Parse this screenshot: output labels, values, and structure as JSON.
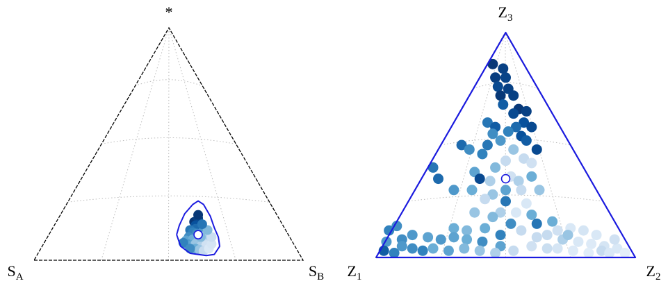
{
  "chart_data": [
    {
      "type": "scatter",
      "coordinate_system": "ternary",
      "vertices": {
        "top": "*",
        "left": "S",
        "left_sub": "A",
        "right": "S",
        "right_sub": "B"
      },
      "grid": true,
      "point_color_scale": "blues",
      "region_color": "#1a1adf",
      "mean_marker": [
        0.61,
        0.11
      ],
      "region_contour": [
        [
          0.53,
          0.11
        ],
        [
          0.54,
          0.15
        ],
        [
          0.56,
          0.2
        ],
        [
          0.59,
          0.24
        ],
        [
          0.61,
          0.255
        ],
        [
          0.63,
          0.24
        ],
        [
          0.655,
          0.19
        ],
        [
          0.67,
          0.14
        ],
        [
          0.685,
          0.1
        ],
        [
          0.69,
          0.06
        ],
        [
          0.67,
          0.025
        ],
        [
          0.64,
          0.02
        ],
        [
          0.58,
          0.03
        ],
        [
          0.545,
          0.06
        ],
        [
          0.53,
          0.11
        ]
      ],
      "points": [
        [
          0.595,
          0.165,
          0.95
        ],
        [
          0.61,
          0.18,
          0.9
        ],
        [
          0.615,
          0.16,
          0.85
        ],
        [
          0.6,
          0.15,
          0.8
        ],
        [
          0.62,
          0.145,
          0.75
        ],
        [
          0.6,
          0.135,
          0.7
        ],
        [
          0.58,
          0.13,
          0.65
        ],
        [
          0.59,
          0.12,
          0.6
        ],
        [
          0.605,
          0.115,
          0.55
        ],
        [
          0.625,
          0.12,
          0.5
        ],
        [
          0.635,
          0.105,
          0.45
        ],
        [
          0.575,
          0.1,
          0.55
        ],
        [
          0.565,
          0.085,
          0.45
        ],
        [
          0.59,
          0.09,
          0.4
        ],
        [
          0.61,
          0.085,
          0.35
        ],
        [
          0.63,
          0.08,
          0.3
        ],
        [
          0.645,
          0.09,
          0.2
        ],
        [
          0.57,
          0.07,
          0.5
        ],
        [
          0.585,
          0.065,
          0.45
        ],
        [
          0.6,
          0.07,
          0.3
        ],
        [
          0.62,
          0.06,
          0.25
        ],
        [
          0.64,
          0.065,
          0.15
        ],
        [
          0.555,
          0.075,
          0.6
        ],
        [
          0.6,
          0.05,
          0.4
        ],
        [
          0.615,
          0.045,
          0.3
        ],
        [
          0.58,
          0.05,
          0.55
        ],
        [
          0.63,
          0.04,
          0.2
        ],
        [
          0.65,
          0.05,
          0.1
        ],
        [
          0.66,
          0.07,
          0.12
        ],
        [
          0.64,
          0.11,
          0.25
        ],
        [
          0.62,
          0.1,
          0.35
        ],
        [
          0.66,
          0.1,
          0.18
        ],
        [
          0.645,
          0.13,
          0.35
        ],
        [
          0.625,
          0.155,
          0.65
        ],
        [
          0.61,
          0.195,
          0.95
        ]
      ]
    },
    {
      "type": "scatter",
      "coordinate_system": "ternary",
      "vertices": {
        "top": "Z",
        "top_sub": "3",
        "left": "Z",
        "left_sub": "1",
        "right": "Z",
        "right_sub": "2"
      },
      "grid": true,
      "point_color_scale": "blues",
      "region_color": "#1a1adf",
      "mean_marker": [
        0.5,
        0.35
      ],
      "region_contour": [
        [
          0.0,
          0.0
        ],
        [
          1.0,
          0.0
        ],
        [
          0.5,
          1.0
        ],
        [
          0.0,
          0.0
        ]
      ],
      "points": [
        [
          0.45,
          0.86,
          0.95
        ],
        [
          0.49,
          0.84,
          0.9
        ],
        [
          0.46,
          0.8,
          0.92
        ],
        [
          0.5,
          0.8,
          0.88
        ],
        [
          0.47,
          0.76,
          0.85
        ],
        [
          0.51,
          0.75,
          0.9
        ],
        [
          0.48,
          0.72,
          0.95
        ],
        [
          0.53,
          0.72,
          0.9
        ],
        [
          0.49,
          0.68,
          0.75
        ],
        [
          0.55,
          0.66,
          0.95
        ],
        [
          0.58,
          0.65,
          0.9
        ],
        [
          0.53,
          0.64,
          0.85
        ],
        [
          0.57,
          0.6,
          0.8
        ],
        [
          0.43,
          0.6,
          0.65
        ],
        [
          0.46,
          0.58,
          0.75
        ],
        [
          0.54,
          0.58,
          0.7
        ],
        [
          0.6,
          0.58,
          0.85
        ],
        [
          0.51,
          0.56,
          0.6
        ],
        [
          0.56,
          0.54,
          0.8
        ],
        [
          0.45,
          0.55,
          0.55
        ],
        [
          0.58,
          0.52,
          0.75
        ],
        [
          0.33,
          0.5,
          0.7
        ],
        [
          0.36,
          0.48,
          0.55
        ],
        [
          0.43,
          0.5,
          0.65
        ],
        [
          0.48,
          0.52,
          0.5
        ],
        [
          0.53,
          0.48,
          0.3
        ],
        [
          0.62,
          0.48,
          0.85
        ],
        [
          0.41,
          0.46,
          0.6
        ],
        [
          0.5,
          0.43,
          0.2
        ],
        [
          0.57,
          0.44,
          0.2
        ],
        [
          0.6,
          0.42,
          0.15
        ],
        [
          0.22,
          0.4,
          0.65
        ],
        [
          0.46,
          0.4,
          0.35
        ],
        [
          0.38,
          0.38,
          0.45
        ],
        [
          0.52,
          0.36,
          0.15
        ],
        [
          0.24,
          0.35,
          0.7
        ],
        [
          0.4,
          0.35,
          0.85
        ],
        [
          0.44,
          0.34,
          0.25
        ],
        [
          0.55,
          0.34,
          0.25
        ],
        [
          0.6,
          0.36,
          0.4
        ],
        [
          0.3,
          0.3,
          0.5
        ],
        [
          0.37,
          0.3,
          0.4
        ],
        [
          0.45,
          0.28,
          0.3
        ],
        [
          0.5,
          0.3,
          0.45
        ],
        [
          0.56,
          0.3,
          0.2
        ],
        [
          0.63,
          0.3,
          0.3
        ],
        [
          0.42,
          0.26,
          0.2
        ],
        [
          0.5,
          0.25,
          0.65
        ],
        [
          0.58,
          0.24,
          0.1
        ],
        [
          0.38,
          0.2,
          0.3
        ],
        [
          0.48,
          0.2,
          0.25
        ],
        [
          0.54,
          0.2,
          0.1
        ],
        [
          0.6,
          0.19,
          0.4
        ],
        [
          0.45,
          0.18,
          0.35
        ],
        [
          0.52,
          0.15,
          0.55
        ],
        [
          0.62,
          0.15,
          0.65
        ],
        [
          0.3,
          0.13,
          0.4
        ],
        [
          0.35,
          0.12,
          0.35
        ],
        [
          0.42,
          0.13,
          0.4
        ],
        [
          0.48,
          0.1,
          0.6
        ],
        [
          0.56,
          0.12,
          0.2
        ],
        [
          0.05,
          0.12,
          0.6
        ],
        [
          0.08,
          0.14,
          0.55
        ],
        [
          0.04,
          0.07,
          0.5
        ],
        [
          0.1,
          0.08,
          0.55
        ],
        [
          0.14,
          0.1,
          0.5
        ],
        [
          0.2,
          0.09,
          0.45
        ],
        [
          0.25,
          0.08,
          0.5
        ],
        [
          0.3,
          0.09,
          0.45
        ],
        [
          0.35,
          0.08,
          0.4
        ],
        [
          0.41,
          0.07,
          0.55
        ],
        [
          0.48,
          0.05,
          0.45
        ],
        [
          0.03,
          0.03,
          0.75
        ],
        [
          0.07,
          0.02,
          0.6
        ],
        [
          0.1,
          0.05,
          0.5
        ],
        [
          0.14,
          0.04,
          0.55
        ],
        [
          0.18,
          0.03,
          0.6
        ],
        [
          0.22,
          0.04,
          0.4
        ],
        [
          0.28,
          0.03,
          0.45
        ],
        [
          0.34,
          0.04,
          0.35
        ],
        [
          0.4,
          0.03,
          0.3
        ],
        [
          0.46,
          0.02,
          0.25
        ],
        [
          0.53,
          0.03,
          0.2
        ],
        [
          0.6,
          0.05,
          0.15
        ],
        [
          0.66,
          0.1,
          0.2
        ],
        [
          0.7,
          0.12,
          0.15
        ],
        [
          0.75,
          0.13,
          0.1
        ],
        [
          0.8,
          0.12,
          0.12
        ],
        [
          0.85,
          0.1,
          0.1
        ],
        [
          0.72,
          0.08,
          0.25
        ],
        [
          0.78,
          0.07,
          0.1
        ],
        [
          0.83,
          0.06,
          0.08
        ],
        [
          0.88,
          0.05,
          0.12
        ],
        [
          0.93,
          0.04,
          0.1
        ],
        [
          0.7,
          0.04,
          0.12
        ],
        [
          0.76,
          0.03,
          0.08
        ],
        [
          0.82,
          0.02,
          0.06
        ],
        [
          0.87,
          0.03,
          0.2
        ],
        [
          0.9,
          0.02,
          0.1
        ],
        [
          0.96,
          0.02,
          0.05
        ],
        [
          0.66,
          0.04,
          0.18
        ],
        [
          0.62,
          0.09,
          0.2
        ],
        [
          0.74,
          0.1,
          0.3
        ],
        [
          0.92,
          0.08,
          0.15
        ],
        [
          0.68,
          0.16,
          0.4
        ]
      ]
    }
  ]
}
